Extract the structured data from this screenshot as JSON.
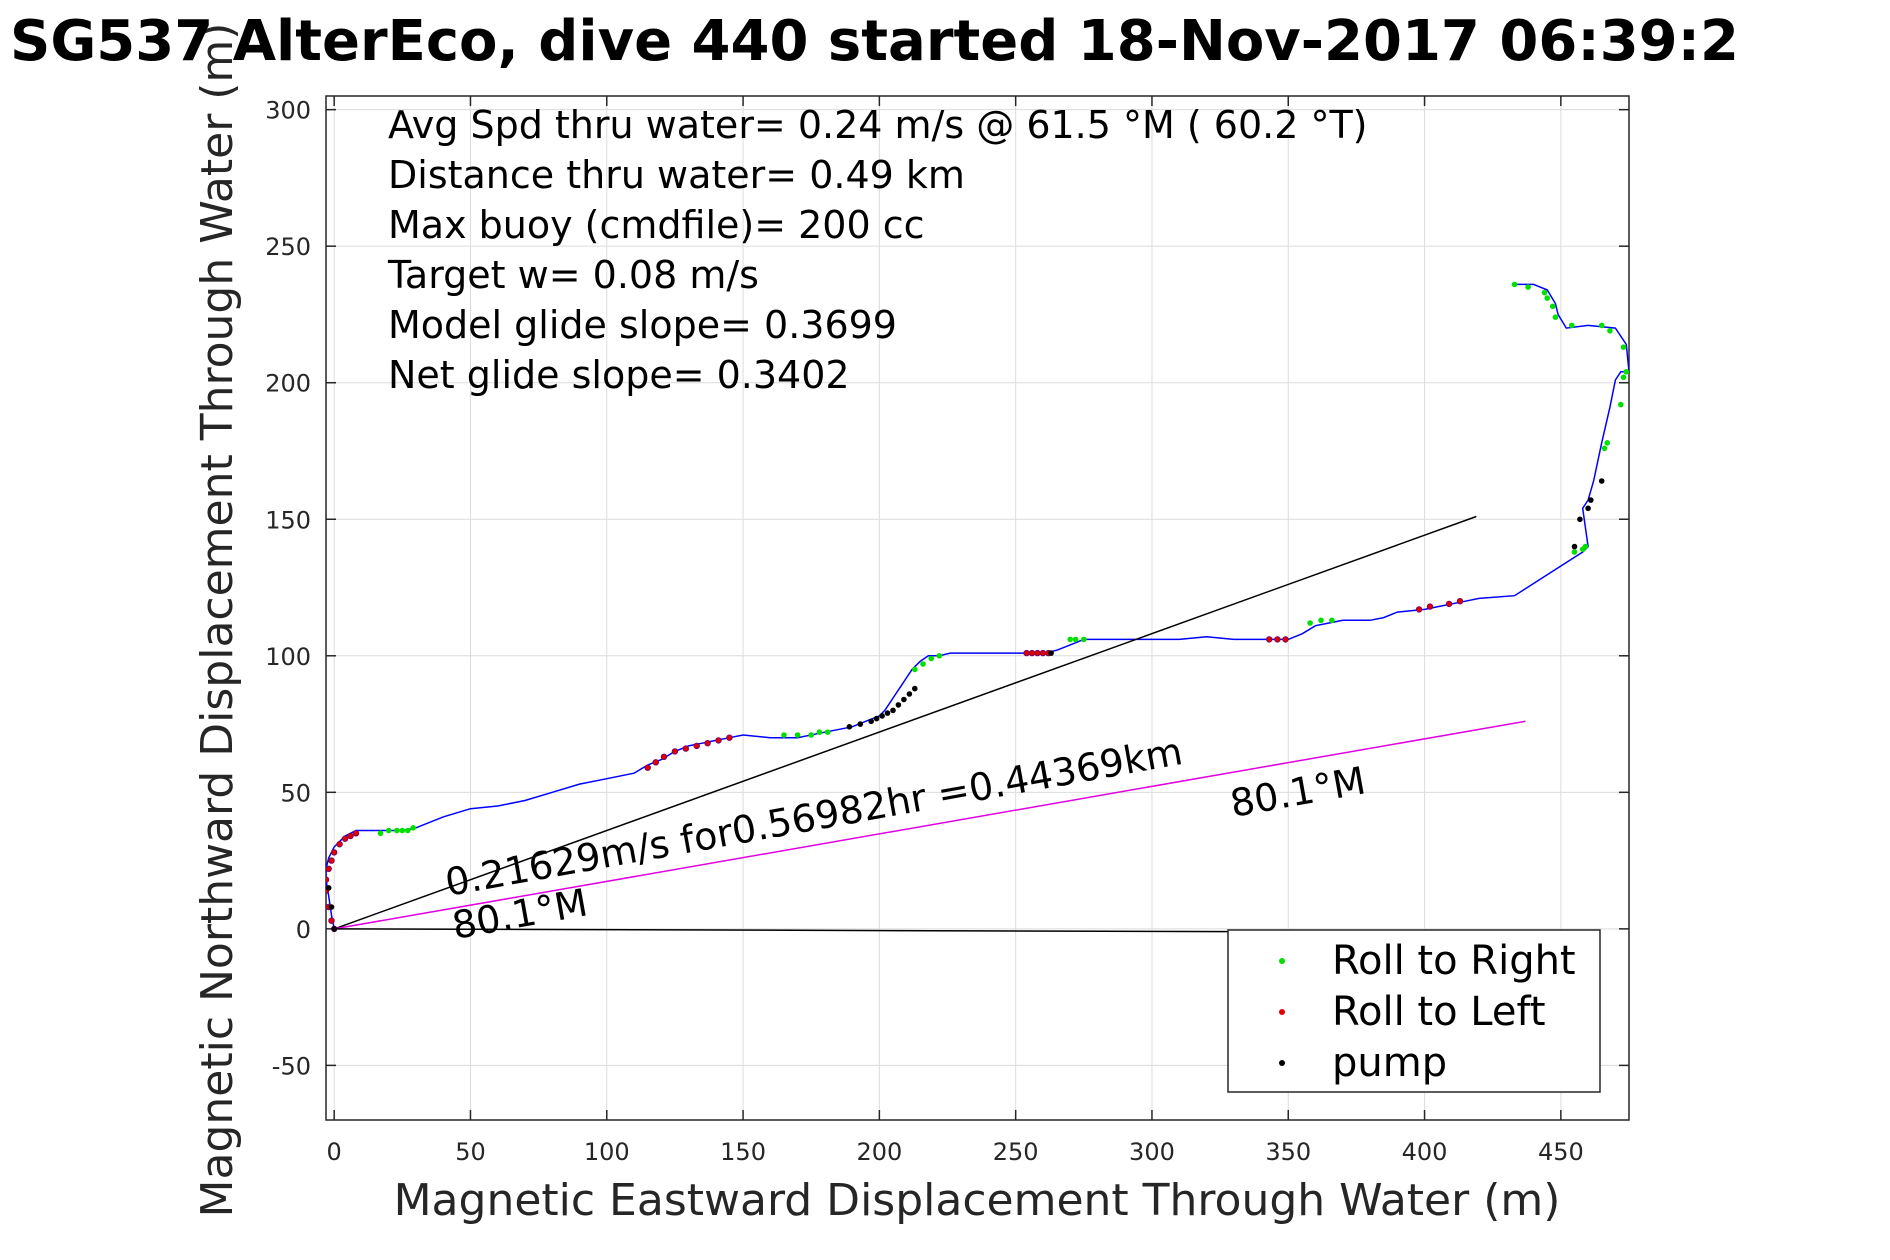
{
  "chart_data": {
    "type": "line",
    "title": "SG537 AlterEco, dive 440 started 18-Nov-2017 06:39:2",
    "xlabel": "Magnetic Eastward Displacement Through Water (m)",
    "ylabel": "Magnetic Northward Displacement Through Water (m)",
    "xlim": [
      -3,
      475
    ],
    "ylim": [
      -70,
      305
    ],
    "x_ticks": [
      0,
      50,
      100,
      150,
      200,
      250,
      300,
      350,
      400,
      450
    ],
    "y_ticks": [
      -50,
      0,
      50,
      100,
      150,
      200,
      250,
      300
    ],
    "grid": true,
    "annotations": [
      "Avg Spd thru water=  0.24 m/s @  61.5 °M ( 60.2 °T)",
      "Distance thru water=  0.49 km",
      "Max buoy (cmdfile)= 200 cc",
      "Target w= 0.08 m/s",
      "Model glide slope= 0.3699",
      "Net glide slope= 0.3402"
    ],
    "vector_label": "0.21629m/s for0.56982hr =0.44369km",
    "heading_label_near": "80.1°M",
    "heading_label_far": "80.1°M",
    "legend": {
      "position": "bottom-right",
      "entries": [
        {
          "label": "Roll to Right",
          "color": "#00e000"
        },
        {
          "label": "Roll to Left",
          "color": "#e00000"
        },
        {
          "label": "pump",
          "color": "#000000"
        }
      ]
    },
    "series": [
      {
        "name": "track",
        "style": "line",
        "color": "#0000ff",
        "x": [
          0,
          -1,
          -2,
          -3,
          -3,
          -2,
          0,
          2,
          4,
          6,
          8,
          10,
          20,
          25,
          30,
          40,
          50,
          60,
          70,
          80,
          90,
          100,
          110,
          115,
          120,
          125,
          130,
          135,
          140,
          145,
          150,
          160,
          170,
          180,
          190,
          195,
          200,
          202,
          204,
          206,
          208,
          210,
          212,
          215,
          218,
          222,
          226,
          230,
          240,
          250,
          255,
          260,
          265,
          270,
          275,
          280,
          290,
          300,
          310,
          320,
          330,
          340,
          345,
          350,
          355,
          360,
          365,
          370,
          380,
          385,
          390,
          400,
          410,
          415,
          420,
          433,
          458,
          460,
          458,
          460,
          462,
          465,
          468,
          470,
          472,
          475,
          474,
          470,
          460,
          452,
          449,
          448,
          445,
          440,
          436,
          433
        ],
        "y": [
          0,
          5,
          12,
          18,
          22,
          26,
          30,
          32,
          34,
          35,
          36,
          36,
          36,
          36,
          37,
          41,
          44,
          45,
          47,
          50,
          53,
          55,
          57,
          60,
          62,
          65,
          67,
          68,
          69,
          70,
          71,
          70,
          70,
          72,
          74,
          76,
          78,
          80,
          83,
          86,
          89,
          92,
          95,
          98,
          100,
          100,
          101,
          101,
          101,
          101,
          101,
          101,
          102,
          104,
          106,
          106,
          106,
          106,
          106,
          107,
          106,
          106,
          106,
          106,
          108,
          111,
          112,
          113,
          113,
          114,
          116,
          117,
          119,
          120,
          121,
          122,
          138,
          140,
          154,
          157,
          164,
          178,
          191,
          201,
          204,
          204,
          214,
          220,
          221,
          220,
          225,
          229,
          234,
          236,
          236,
          236
        ]
      },
      {
        "name": "Roll to Right",
        "style": "markers",
        "color": "#00e000",
        "x": [
          17,
          20,
          23,
          25,
          27,
          29,
          165,
          170,
          175,
          178,
          181,
          213,
          216,
          219,
          222,
          270,
          272,
          275,
          358,
          362,
          366,
          455,
          458,
          459,
          466,
          467,
          472,
          473,
          474,
          473,
          468,
          465,
          454,
          448,
          447,
          445,
          444,
          438,
          433
        ],
        "y": [
          35,
          36,
          36,
          36,
          36,
          37,
          71,
          71,
          71,
          72,
          72,
          95,
          97,
          99,
          100,
          106,
          106,
          106,
          112,
          113,
          113,
          138,
          139,
          140,
          176,
          178,
          192,
          202,
          204,
          213,
          219,
          221,
          221,
          224,
          228,
          231,
          233,
          235,
          236
        ]
      },
      {
        "name": "Roll to Left",
        "style": "markers",
        "color": "#e00000",
        "x": [
          0,
          -1,
          -2,
          -3,
          -3,
          -2,
          -1,
          0,
          2,
          4,
          6,
          8,
          115,
          118,
          121,
          125,
          129,
          133,
          137,
          141,
          145,
          254,
          256,
          258,
          260,
          262,
          343,
          346,
          349,
          398,
          402,
          409,
          413
        ],
        "y": [
          0,
          3,
          8,
          14,
          18,
          22,
          25,
          28,
          31,
          33,
          34,
          35,
          59,
          61,
          63,
          65,
          66,
          67,
          68,
          69,
          70,
          101,
          101,
          101,
          101,
          101,
          106,
          106,
          106,
          117,
          118,
          119,
          120
        ],
        "edge": "#6a006a"
      },
      {
        "name": "pump",
        "style": "markers",
        "color": "#000000",
        "x": [
          0,
          -1,
          -2,
          189,
          193,
          197,
          199,
          201,
          203,
          205,
          207,
          209,
          211,
          213,
          263,
          455,
          457,
          460,
          461,
          465
        ],
        "y": [
          0,
          8,
          15,
          74,
          75,
          76,
          77,
          78,
          79,
          80,
          82,
          84,
          86,
          88,
          101,
          140,
          150,
          154,
          157,
          164
        ]
      },
      {
        "name": "net displacement",
        "style": "line",
        "color": "#000000",
        "x": [
          0,
          419
        ],
        "y": [
          0,
          151
        ]
      },
      {
        "name": "current vector",
        "style": "line",
        "color": "#e000e0",
        "x": [
          0,
          437
        ],
        "y": [
          0,
          76
        ]
      },
      {
        "name": "reference line",
        "style": "line",
        "color": "#000000",
        "x": [
          0,
          330
        ],
        "y": [
          0,
          -1
        ]
      }
    ]
  }
}
